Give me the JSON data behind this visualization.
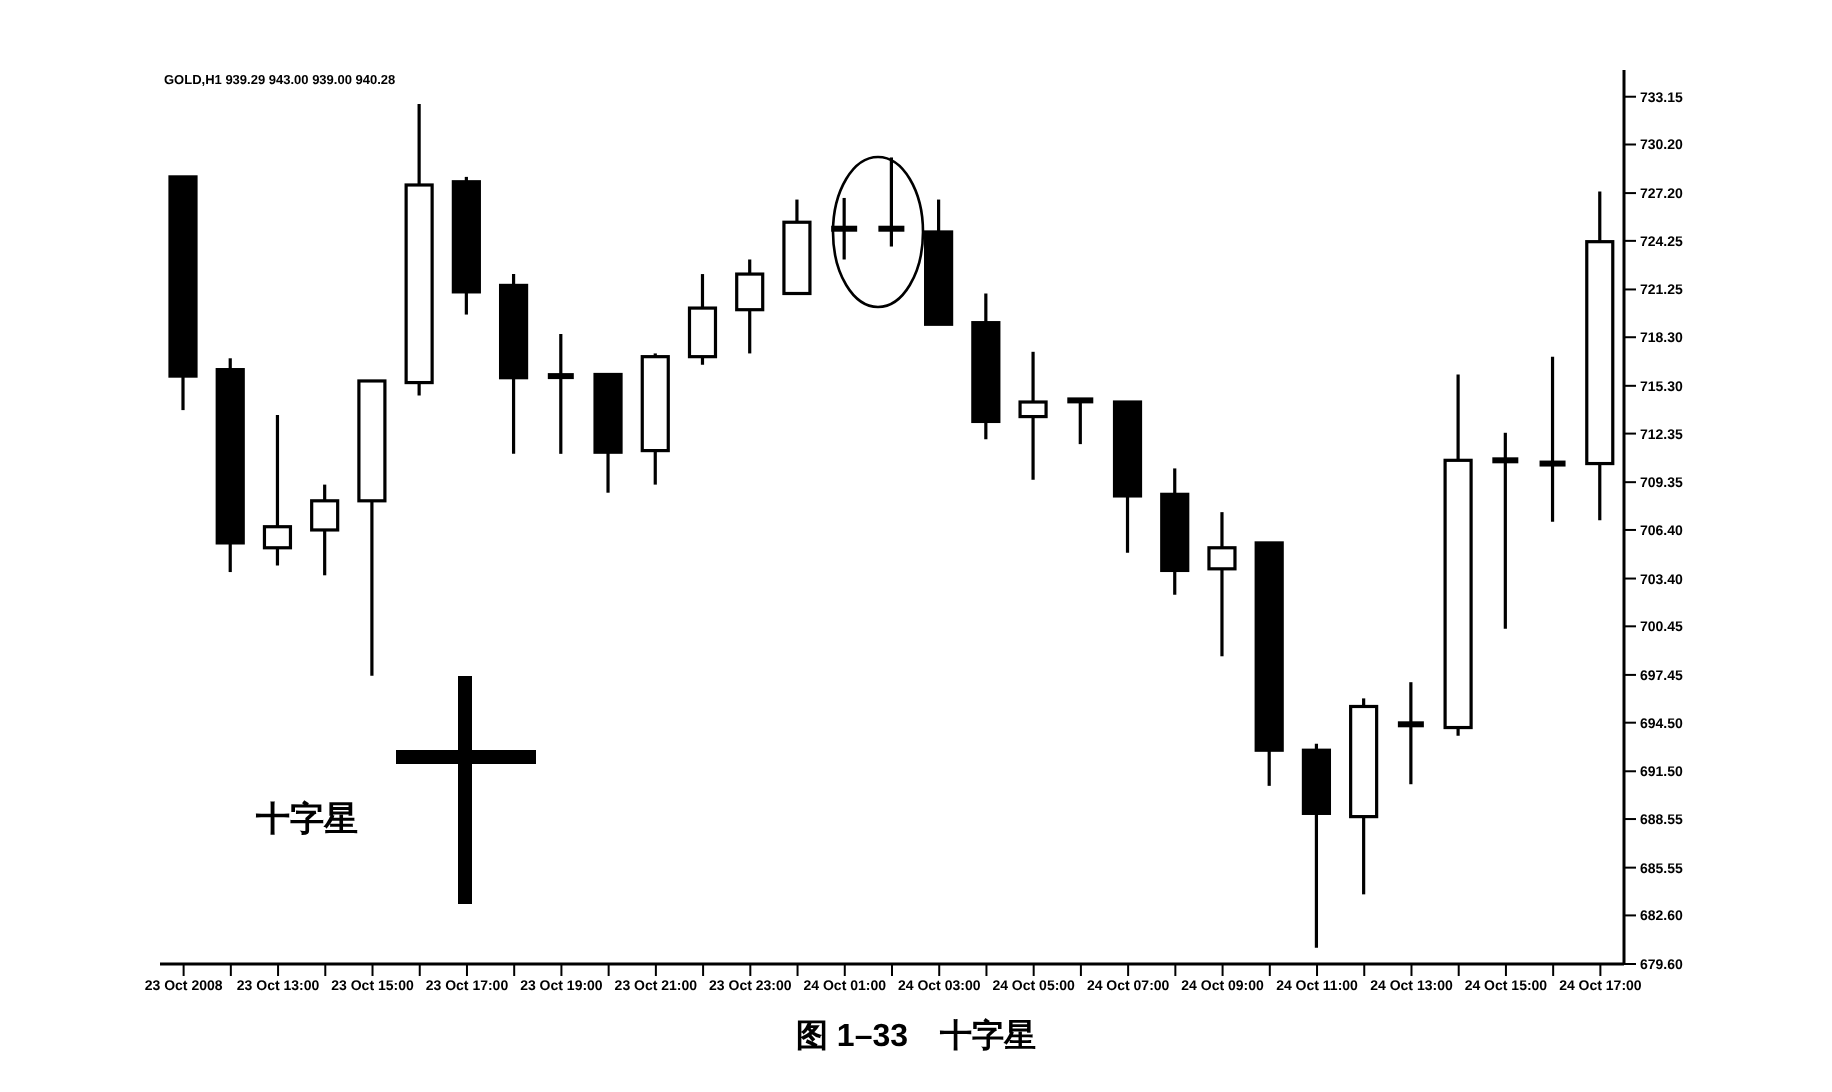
{
  "chart_data": {
    "type": "candlestick",
    "title": "图 1–33　十字星",
    "annotations": [
      "GOLD,H1 939.29 943.00 939.00 940.28",
      "十字星"
    ],
    "categories": [
      "23 Oct 2008",
      null,
      "23 Oct 13:00",
      null,
      "23 Oct 15:00",
      null,
      "23 Oct 17:00",
      null,
      "23 Oct 19:00",
      null,
      "23 Oct 21:00",
      null,
      "23 Oct 23:00",
      null,
      "24 Oct 01:00",
      null,
      "24 Oct 03:00",
      null,
      "24 Oct 05:00",
      null,
      "24 Oct 07:00",
      null,
      "24 Oct 09:00",
      null,
      "24 Oct 11:00",
      null,
      "24 Oct 13:00",
      null,
      "24 Oct 15:00",
      null,
      "24 Oct 17:00"
    ],
    "ohlc": [
      [
        728.2,
        728.2,
        713.8,
        715.9
      ],
      [
        716.3,
        717.0,
        703.8,
        705.6
      ],
      [
        705.3,
        713.5,
        704.2,
        706.6
      ],
      [
        706.4,
        709.2,
        703.6,
        708.2
      ],
      [
        708.2,
        715.6,
        697.4,
        715.6
      ],
      [
        715.5,
        732.7,
        714.7,
        727.7
      ],
      [
        727.9,
        728.2,
        719.7,
        721.1
      ],
      [
        721.5,
        722.2,
        711.1,
        715.8
      ],
      [
        715.9,
        718.5,
        711.1,
        715.8
      ],
      [
        716.0,
        716.0,
        708.7,
        711.2
      ],
      [
        711.3,
        717.3,
        709.2,
        717.1
      ],
      [
        717.1,
        722.2,
        716.6,
        720.1
      ],
      [
        720.0,
        723.1,
        717.3,
        722.2
      ],
      [
        721.0,
        726.8,
        721.0,
        725.4
      ],
      [
        725.0,
        726.9,
        723.1,
        724.9
      ],
      [
        724.9,
        729.4,
        723.9,
        725.0
      ],
      [
        724.8,
        726.8,
        719.1,
        719.1
      ],
      [
        719.2,
        721.0,
        712.0,
        713.1
      ],
      [
        713.4,
        717.4,
        709.5,
        714.3
      ],
      [
        714.4,
        714.4,
        711.7,
        714.4
      ],
      [
        714.3,
        714.3,
        705.0,
        708.5
      ],
      [
        708.6,
        710.2,
        702.4,
        703.9
      ],
      [
        704.0,
        707.5,
        698.6,
        705.3
      ],
      [
        705.6,
        705.6,
        690.6,
        692.8
      ],
      [
        692.8,
        693.2,
        680.6,
        688.9
      ],
      [
        688.7,
        696.0,
        683.9,
        695.5
      ],
      [
        694.4,
        697.0,
        690.7,
        694.4
      ],
      [
        694.2,
        716.0,
        693.7,
        710.7
      ],
      [
        710.7,
        712.4,
        700.3,
        710.7
      ],
      [
        710.5,
        717.1,
        706.9,
        710.5
      ],
      [
        710.5,
        727.3,
        707.0,
        724.2
      ]
    ],
    "ylim": [
      679.6,
      734.8
    ],
    "yticks": [
      733.15,
      {
        "value": 730.2,
        "label": "730.20"
      },
      {
        "value": 727.2,
        "label": "727.20"
      },
      724.25,
      721.25,
      {
        "value": 718.3,
        "label": "718.30"
      },
      {
        "value": 715.3,
        "label": "715.30"
      },
      712.35,
      709.35,
      {
        "value": 706.4,
        "label": "706.40"
      },
      {
        "value": 703.4,
        "label": "703.40"
      },
      700.45,
      697.45,
      {
        "value": 694.5,
        "label": "694.50"
      },
      {
        "value": 691.5,
        "label": "691.50"
      },
      688.55,
      685.55,
      {
        "value": 682.6,
        "label": "682.60"
      },
      {
        "value": 679.6,
        "label": "679.60"
      }
    ]
  }
}
